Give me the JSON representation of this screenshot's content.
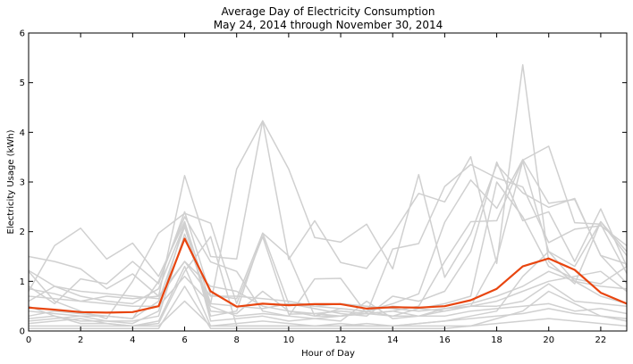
{
  "chart_data": {
    "type": "line",
    "title": "Average Day of Electricity Consumption",
    "subtitle": "May 24, 2014 through November 30, 2014",
    "xlabel": "Hour of Day",
    "ylabel": "Electricity Usage (kWh)",
    "xlim": [
      0,
      23
    ],
    "ylim": [
      0,
      6
    ],
    "x_ticks": [
      0,
      2,
      4,
      6,
      8,
      10,
      12,
      14,
      16,
      18,
      20,
      22
    ],
    "y_ticks": [
      0,
      1,
      2,
      3,
      4,
      5,
      6
    ],
    "x": [
      0,
      1,
      2,
      3,
      4,
      5,
      6,
      7,
      8,
      9,
      10,
      11,
      12,
      13,
      14,
      15,
      16,
      17,
      18,
      19,
      20,
      21,
      22,
      23
    ],
    "grid": false,
    "colors": {
      "average": "#e8450f",
      "daily": "#d0d0d0",
      "frame": "#000000"
    },
    "series": [
      {
        "role": "average",
        "values": [
          0.47,
          0.43,
          0.38,
          0.37,
          0.38,
          0.5,
          1.86,
          0.8,
          0.49,
          0.55,
          0.52,
          0.54,
          0.54,
          0.45,
          0.48,
          0.47,
          0.5,
          0.62,
          0.85,
          1.3,
          1.46,
          1.23,
          0.77,
          0.55
        ]
      }
    ],
    "daily_series": [
      [
        1.5,
        1.4,
        1.25,
        0.85,
        1.15,
        0.7,
        3.13,
        1.5,
        1.45,
        4.23,
        3.26,
        1.88,
        1.79,
        2.15,
        1.25,
        3.15,
        1.08,
        1.95,
        3.35,
        2.78,
        2.49,
        2.67,
        1.52,
        1.35
      ],
      [
        0.8,
        1.72,
        2.07,
        1.45,
        1.77,
        1.1,
        2.2,
        0.55,
        3.26,
        4.23,
        1.44,
        2.22,
        1.38,
        1.26,
        1.95,
        2.77,
        2.6,
        3.51,
        1.36,
        5.36,
        1.4,
        0.95,
        2.2,
        1.52
      ],
      [
        1.2,
        0.6,
        0.4,
        0.25,
        1.0,
        1.97,
        2.37,
        2.17,
        0.55,
        1.9,
        0.34,
        0.35,
        0.4,
        0.35,
        1.65,
        1.76,
        2.91,
        3.35,
        3.08,
        2.9,
        1.78,
        2.05,
        2.12,
        1.72
      ],
      [
        0.9,
        0.55,
        1.05,
        0.95,
        1.4,
        0.95,
        2.4,
        0.72,
        0.65,
        1.97,
        1.51,
        0.3,
        0.45,
        0.4,
        0.55,
        0.75,
        2.19,
        3.04,
        2.47,
        3.45,
        2.57,
        2.65,
        1.52,
        0.96
      ],
      [
        0.3,
        0.4,
        0.35,
        0.3,
        0.25,
        1.0,
        2.3,
        1.39,
        1.2,
        0.4,
        0.3,
        1.05,
        1.06,
        0.35,
        0.4,
        0.5,
        1.4,
        2.2,
        2.22,
        3.44,
        3.72,
        2.18,
        2.15,
        1.16
      ],
      [
        0.6,
        0.9,
        0.7,
        0.6,
        0.55,
        0.85,
        2.15,
        0.3,
        0.4,
        1.97,
        0.55,
        0.45,
        0.35,
        0.3,
        0.7,
        0.6,
        0.8,
        1.6,
        3.4,
        2.22,
        2.4,
        1.4,
        2.46,
        1.3
      ],
      [
        0.25,
        0.3,
        0.2,
        0.2,
        0.15,
        0.4,
        2.2,
        0.2,
        0.25,
        0.3,
        0.2,
        0.25,
        0.3,
        0.35,
        0.4,
        0.3,
        0.45,
        0.5,
        1.45,
        3.42,
        1.6,
        1.3,
        2.2,
        1.6
      ],
      [
        0.4,
        0.35,
        0.3,
        0.3,
        0.25,
        0.6,
        2.1,
        0.4,
        0.35,
        0.8,
        0.4,
        0.35,
        0.3,
        0.4,
        0.3,
        0.45,
        0.55,
        0.7,
        3.0,
        2.3,
        1.3,
        1.05,
        0.95,
        1.3
      ],
      [
        0.1,
        0.1,
        0.1,
        0.1,
        0.1,
        0.15,
        1.2,
        1.9,
        0.1,
        0.1,
        0.1,
        0.1,
        0.15,
        0.1,
        0.1,
        0.15,
        0.2,
        0.3,
        0.4,
        1.1,
        1.6,
        1.0,
        0.9,
        0.85
      ],
      [
        0.2,
        0.25,
        0.3,
        0.2,
        0.2,
        0.3,
        1.95,
        0.5,
        0.3,
        0.35,
        0.3,
        0.25,
        0.2,
        0.6,
        0.25,
        0.3,
        0.4,
        0.5,
        0.6,
        0.8,
        1.0,
        1.1,
        1.2,
        0.8
      ],
      [
        0.7,
        0.65,
        0.6,
        0.7,
        0.65,
        0.7,
        1.4,
        0.7,
        0.7,
        0.65,
        0.6,
        0.5,
        0.45,
        0.4,
        0.5,
        0.45,
        0.4,
        0.5,
        0.5,
        0.6,
        0.95,
        0.6,
        0.55,
        0.5
      ],
      [
        1.22,
        0.9,
        0.8,
        0.75,
        0.7,
        0.65,
        1.4,
        0.9,
        0.8,
        0.5,
        0.4,
        0.3,
        0.3,
        0.35,
        0.3,
        0.3,
        0.3,
        0.4,
        0.45,
        0.5,
        0.55,
        0.4,
        0.45,
        0.35
      ],
      [
        0.15,
        0.2,
        0.25,
        0.15,
        0.1,
        0.2,
        1.3,
        0.1,
        0.15,
        0.2,
        0.15,
        0.1,
        0.1,
        0.15,
        0.1,
        0.15,
        0.2,
        0.25,
        0.3,
        0.35,
        0.45,
        0.35,
        0.3,
        0.25
      ],
      [
        0.05,
        0.05,
        0.05,
        0.05,
        0.05,
        0.05,
        0.9,
        0.05,
        0.05,
        0.05,
        0.05,
        0.05,
        0.05,
        0.05,
        0.05,
        0.05,
        0.05,
        0.1,
        0.15,
        0.2,
        0.25,
        0.2,
        0.15,
        0.1
      ],
      [
        0.5,
        0.3,
        0.15,
        0.15,
        0.1,
        0.1,
        0.6,
        0.1,
        0.1,
        0.1,
        0.1,
        0.1,
        0.1,
        0.1,
        0.1,
        0.1,
        0.1,
        0.1,
        0.25,
        0.4,
        0.8,
        0.55,
        0.3,
        0.2
      ],
      [
        0.85,
        0.75,
        0.6,
        0.55,
        0.5,
        0.5,
        1.1,
        0.55,
        0.5,
        0.45,
        0.55,
        0.5,
        0.55,
        0.5,
        0.45,
        0.4,
        0.45,
        0.55,
        0.7,
        0.9,
        1.2,
        1.0,
        0.7,
        0.55
      ]
    ]
  }
}
